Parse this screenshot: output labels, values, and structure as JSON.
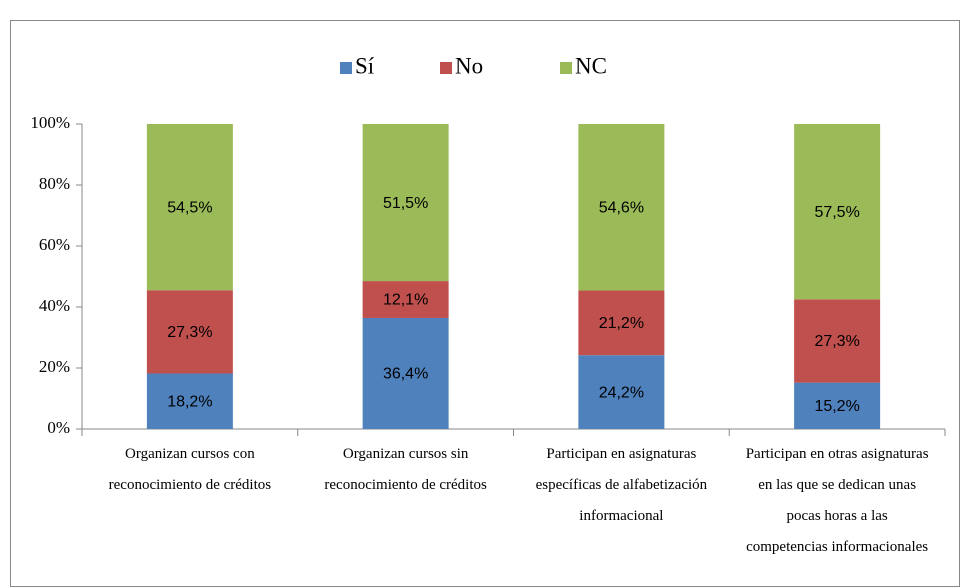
{
  "chart_data": {
    "type": "stacked_bar",
    "categories": [
      "Organizan cursos  con\nreconocimiento de créditos",
      "Organizan cursos sin\nreconocimiento de créditos",
      "Participan en asignaturas\nespecíficas de alfabetización\ninformacional",
      "Participan en otras asignaturas\nen las que se dedican unas\npocas horas a las\ncompetencias informacionales"
    ],
    "series": [
      {
        "name": "Sí",
        "color": "#4f81bd",
        "values": [
          18.2,
          36.4,
          24.2,
          15.2
        ],
        "value_labels": [
          "18,2%",
          "36,4%",
          "24,2%",
          "15,2%"
        ]
      },
      {
        "name": "No",
        "color": "#c0504d",
        "values": [
          27.3,
          12.1,
          21.2,
          27.3
        ],
        "value_labels": [
          "27,3%",
          "12,1%",
          "21,2%",
          "27,3%"
        ]
      },
      {
        "name": "NC",
        "color": "#9bbb59",
        "values": [
          54.5,
          51.5,
          54.6,
          57.5
        ],
        "value_labels": [
          "54,5%",
          "51,5%",
          "54,6%",
          "57,5%"
        ]
      }
    ],
    "ylim": [
      0,
      100
    ],
    "yticks": [
      {
        "value": 0,
        "label": "0%"
      },
      {
        "value": 20,
        "label": "20%"
      },
      {
        "value": 40,
        "label": "40%"
      },
      {
        "value": 60,
        "label": "60%"
      },
      {
        "value": 80,
        "label": "80%"
      },
      {
        "value": 100,
        "label": "100%"
      }
    ],
    "legend": "top",
    "grid": false
  }
}
